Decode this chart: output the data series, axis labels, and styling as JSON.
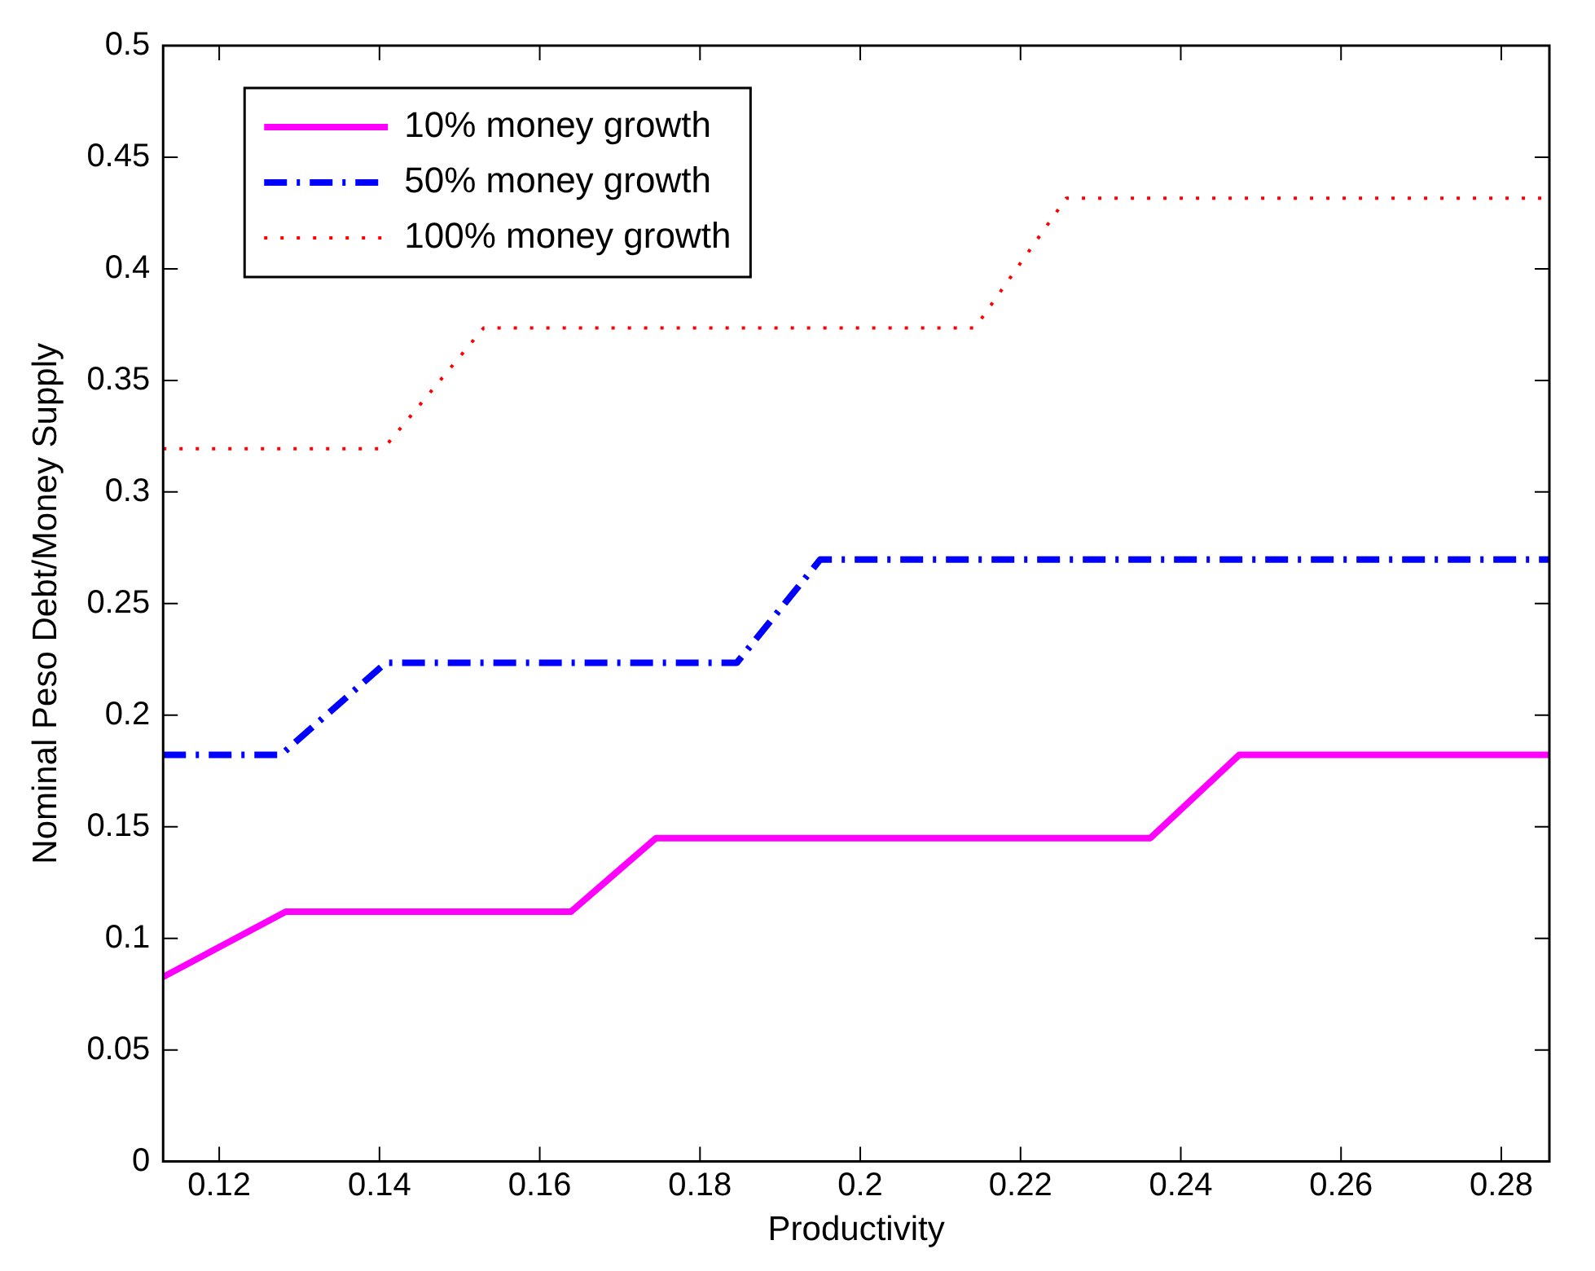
{
  "chart_data": {
    "type": "line",
    "xlabel": "Productivity",
    "ylabel": "Nominal Peso Debt/Money Supply",
    "xlim": [
      0.113,
      0.286
    ],
    "xticks": [
      0.12,
      0.14,
      0.16,
      0.18,
      0.2,
      0.22,
      0.24,
      0.26,
      0.28
    ],
    "ylim": [
      0,
      0.5
    ],
    "yticks": [
      0,
      0.05,
      0.1,
      0.15,
      0.2,
      0.25,
      0.3,
      0.35,
      0.4,
      0.45,
      0.5
    ],
    "grid": false,
    "legend": "top left",
    "marker": "none",
    "series": [
      {
        "name": "10% money growth",
        "color": "#ff00ff",
        "line_style": "solid",
        "x": [
          0.113,
          0.1283,
          0.1639,
          0.1745,
          0.2362,
          0.2473,
          0.286
        ],
        "values": [
          0.0827,
          0.1119,
          0.1119,
          0.1449,
          0.1449,
          0.1822,
          0.1822
        ]
      },
      {
        "name": "50% money growth",
        "color": "#0000ff",
        "line_style": "dashed",
        "x": [
          0.113,
          0.1277,
          0.1408,
          0.1846,
          0.195,
          0.286
        ],
        "values": [
          0.1822,
          0.1822,
          0.2235,
          0.2235,
          0.2697,
          0.2697
        ]
      },
      {
        "name": "100% money growth",
        "color": "#ff0000",
        "line_style": "dotted",
        "x": [
          0.113,
          0.1405,
          0.153,
          0.2143,
          0.2257,
          0.286
        ],
        "values": [
          0.3194,
          0.3194,
          0.3735,
          0.3735,
          0.4316,
          0.4316
        ]
      }
    ]
  }
}
